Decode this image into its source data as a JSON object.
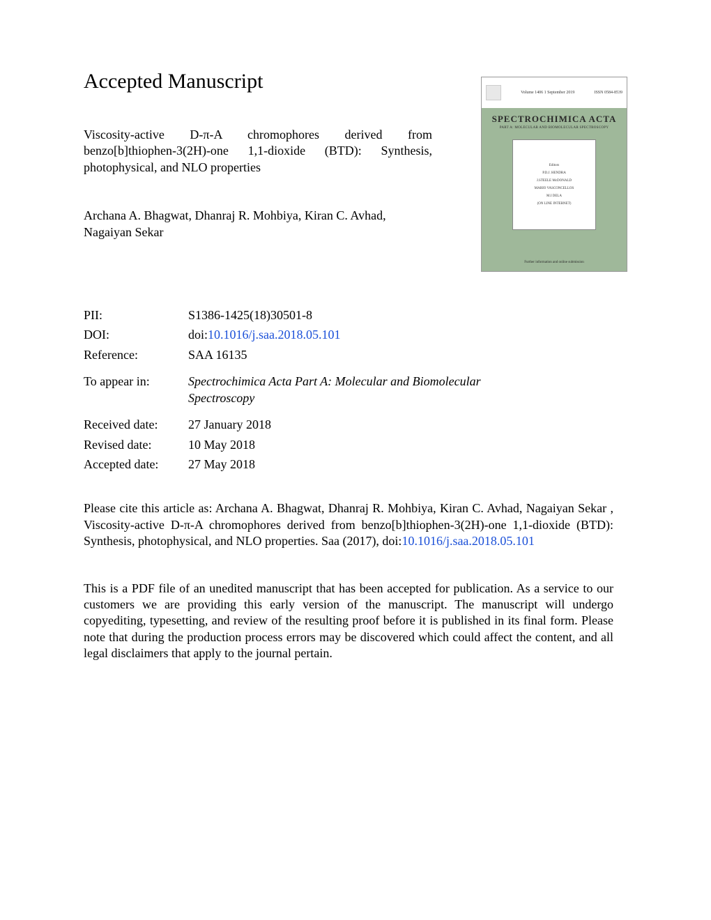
{
  "heading": "Accepted Manuscript",
  "title": "Viscosity-active D-π-A chromophores derived from benzo[b]thiophen-3(2H)-one 1,1-dioxide (BTD): Synthesis, photophysical, and NLO properties",
  "authors": "Archana A. Bhagwat, Dhanraj R. Mohbiya, Kiran C. Avhad, Nagaiyan Sekar",
  "cover": {
    "top_left": "Volume 1406  1 September  2019",
    "top_right": "ISSN 0584-8539",
    "journal_name": "SPECTROCHIMICA ACTA",
    "subtitle": "PART A: MOLECULAR AND BIOMOLECULAR SPECTROSCOPY",
    "panel_heading": "Editors",
    "panel_line1": "P.D.J. HENDRA",
    "panel_line2": "J.STEELE McDONALD",
    "panel_line3": "MARIO VASCONCELLOS",
    "panel_line4": "M.I DELA",
    "panel_line5": "(ON LINE INTERNET)",
    "footer": "Further information and online submission"
  },
  "meta": {
    "pii_label": "PII:",
    "pii_value": "S1386-1425(18)30501-8",
    "doi_label": "DOI:",
    "doi_prefix": "doi:",
    "doi_link": "10.1016/j.saa.2018.05.101",
    "ref_label": "Reference:",
    "ref_value": "SAA 16135",
    "appear_label": "To appear in:",
    "appear_value": "Spectrochimica Acta Part A: Molecular and Biomolecular Spectroscopy",
    "received_label": "Received date:",
    "received_value": "27 January 2018",
    "revised_label": "Revised date:",
    "revised_value": "10 May 2018",
    "accepted_label": "Accepted date:",
    "accepted_value": "27 May 2018"
  },
  "citation_prefix": "Please cite this article as: Archana A. Bhagwat, Dhanraj R. Mohbiya, Kiran C. Avhad, Nagaiyan Sekar , Viscosity-active D-π-A chromophores derived from benzo[b]thiophen-3(2H)-one 1,1-dioxide (BTD): Synthesis, photophysical, and NLO properties. Saa (2017), doi:",
  "citation_link": "10.1016/j.saa.2018.05.101",
  "disclaimer": "This is a PDF file of an unedited manuscript that has been accepted for publication. As a service to our customers we are providing this early version of the manuscript. The manuscript will undergo copyediting, typesetting, and review of the resulting proof before it is published in its final form. Please note that during the production process errors may be discovered which could affect the content, and all legal disclaimers that apply to the journal pertain."
}
